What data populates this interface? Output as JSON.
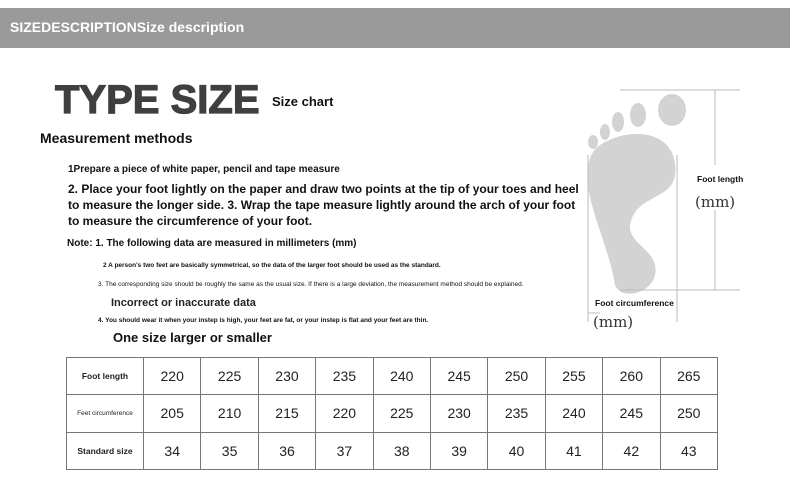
{
  "header": {
    "text": "SIZEDESCRIPTIONSize description"
  },
  "title": "TYPE SIZE",
  "subtitle": "Size chart",
  "methods": {
    "heading": "Measurement methods",
    "step1": "1Prepare a piece of white paper, pencil and tape measure",
    "step2": "2. Place your foot lightly on the paper and draw two points at the tip of your toes and heel to measure the longer side. 3. Wrap the tape measure lightly around the arch of your foot to measure the circumference of your foot."
  },
  "notes": {
    "n1": "Note: 1. The following data are measured in millimeters (mm)",
    "n2": "2 A person's two feet are basically symmetrical, so the data of the larger foot should be used as the standard.",
    "n3": "3. The corresponding size should be roughly the same as the usual size. If there is a large deviation, the measurement method should be explained.",
    "incorrect": "Incorrect or inaccurate data",
    "n4": "4. You should wear it when your instep is high, your feet are fat, or your instep is flat and your feet are thin.",
    "one_size": "One size larger or smaller"
  },
  "diagram": {
    "foot_length": "Foot length",
    "foot_length_unit": "(mm)",
    "foot_circ": "Foot circumference",
    "foot_circ_unit": "(mm)"
  },
  "table": {
    "rows": [
      {
        "label": "Foot length",
        "values": [
          "220",
          "225",
          "230",
          "235",
          "240",
          "245",
          "250",
          "255",
          "260",
          "265"
        ]
      },
      {
        "label": "Feet circumference",
        "values": [
          "205",
          "210",
          "215",
          "220",
          "225",
          "230",
          "235",
          "240",
          "245",
          "250"
        ]
      },
      {
        "label": "Standard size",
        "values": [
          "34",
          "35",
          "36",
          "37",
          "38",
          "39",
          "40",
          "41",
          "42",
          "43"
        ]
      }
    ]
  }
}
